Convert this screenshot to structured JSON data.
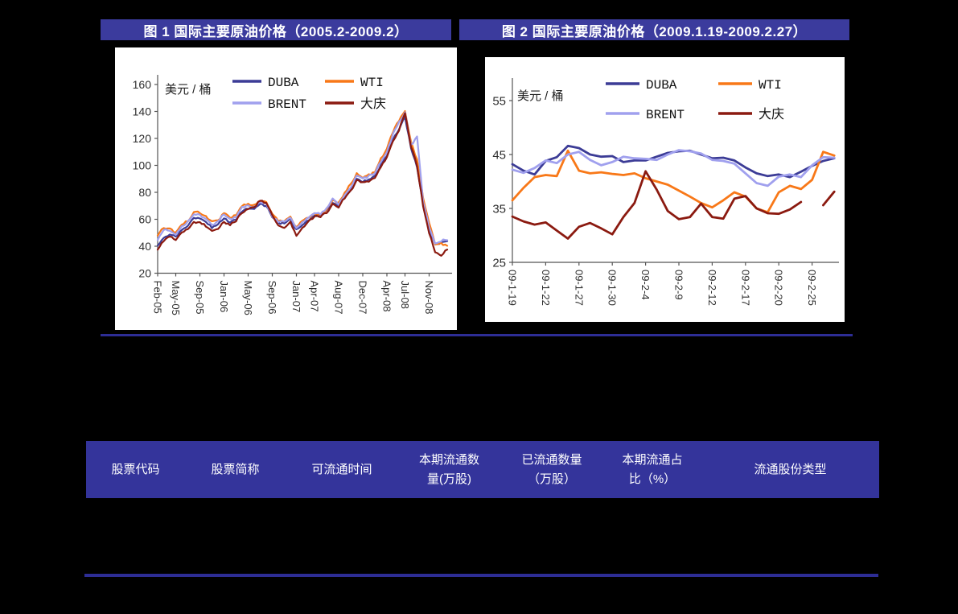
{
  "colors": {
    "page_background": "#000000",
    "figure_title_bar_bg": "#3b3b9d",
    "table_header_bg": "#34349b",
    "divider_line": "#2d2d95",
    "axis_line": "#555555",
    "axis_text": "#2e2e2e",
    "series_duba": "#3c3c96",
    "series_wti": "#f87818",
    "series_brent": "#a0a0ee",
    "series_daqing": "#8b1a10"
  },
  "table": {
    "columns": [
      {
        "label": "股票代码"
      },
      {
        "label": "股票简称"
      },
      {
        "label": "可流通时间"
      },
      {
        "label": "本期流通数\n量(万股)"
      },
      {
        "label": "已流通数量\n（万股）"
      },
      {
        "label": "本期流通占\n比（%）"
      },
      {
        "label": "流通股份类型"
      }
    ]
  },
  "chart_data": [
    {
      "type": "line",
      "title": "图 1 国际主要原油价格（2005.2-2009.2）",
      "unit_label": "美元 / 桶",
      "legend_position": "top-inside",
      "grid": false,
      "ylim": [
        20,
        160
      ],
      "yticks": [
        160,
        140,
        120,
        100,
        80,
        60,
        40,
        20
      ],
      "x_description": "monthly, Feb-2005 to Feb-2009, tick labels rotated 90°",
      "xticks": [
        {
          "label": "Feb-05",
          "index": 0
        },
        {
          "label": "May-05",
          "index": 3
        },
        {
          "label": "Sep-05",
          "index": 7
        },
        {
          "label": "Jan-06",
          "index": 11
        },
        {
          "label": "May-06",
          "index": 15
        },
        {
          "label": "Sep-06",
          "index": 19
        },
        {
          "label": "Jan-07",
          "index": 23
        },
        {
          "label": "Apr-07",
          "index": 26
        },
        {
          "label": "Aug-07",
          "index": 30
        },
        {
          "label": "Dec-07",
          "index": 34
        },
        {
          "label": "Apr-08",
          "index": 38
        },
        {
          "label": "Jul-08",
          "index": 41
        },
        {
          "label": "Nov-08",
          "index": 45
        }
      ],
      "series": [
        {
          "name": "DUBA",
          "color_key": "series_duba",
          "values": [
            41,
            46,
            49,
            47,
            52,
            55,
            61,
            61,
            58,
            54,
            56,
            61,
            58,
            60,
            66,
            68,
            68,
            71,
            70,
            62,
            57,
            57,
            60,
            52,
            56,
            59,
            63,
            63,
            66,
            72,
            70,
            77,
            82,
            90,
            88,
            89,
            92,
            100,
            107,
            119,
            127,
            136,
            113,
            99,
            72,
            53,
            41,
            43,
            44
          ]
        },
        {
          "name": "WTI",
          "color_key": "series_wti",
          "values": [
            48,
            54,
            53,
            50,
            56,
            59,
            65,
            65,
            62,
            58,
            59,
            65,
            61,
            63,
            70,
            71,
            71,
            74,
            73,
            64,
            59,
            59,
            62,
            54,
            59,
            61,
            64,
            63,
            67,
            74,
            72,
            80,
            86,
            94,
            91,
            93,
            95,
            105,
            112,
            125,
            133,
            140,
            117,
            104,
            76,
            57,
            42,
            42,
            40
          ]
        },
        {
          "name": "BRENT",
          "color_key": "series_brent",
          "values": [
            45,
            52,
            52,
            49,
            55,
            58,
            64,
            63,
            60,
            56,
            58,
            64,
            60,
            62,
            69,
            70,
            69,
            73,
            72,
            62,
            58,
            58,
            61,
            53,
            58,
            61,
            65,
            64,
            68,
            75,
            71,
            78,
            84,
            92,
            90,
            92,
            94,
            103,
            110,
            123,
            132,
            139,
            115,
            121,
            73,
            54,
            42,
            44,
            45
          ]
        },
        {
          "name": "大庆",
          "color_key": "series_daqing",
          "values": [
            38,
            44,
            47,
            45,
            50,
            53,
            58,
            58,
            55,
            51,
            53,
            58,
            56,
            59,
            65,
            67,
            69,
            74,
            72,
            63,
            56,
            54,
            58,
            48,
            54,
            58,
            62,
            62,
            65,
            71,
            69,
            76,
            81,
            89,
            87,
            88,
            91,
            99,
            106,
            118,
            126,
            139,
            114,
            100,
            70,
            50,
            36,
            33,
            38
          ]
        }
      ]
    },
    {
      "type": "line",
      "title": "图 2 国际主要原油价格（2009.1.19-2009.2.27）",
      "unit_label": "美元 / 桶",
      "legend_position": "top-inside",
      "grid": false,
      "ylim": [
        25,
        58
      ],
      "yticks": [
        55,
        45,
        35,
        25
      ],
      "x_description": "daily trading days 2009-1-19 to 2009-2-27, tick labels rotated 90°",
      "xticks": [
        {
          "label": "09-1-19",
          "index": 0
        },
        {
          "label": "09-1-22",
          "index": 3
        },
        {
          "label": "09-1-27",
          "index": 6
        },
        {
          "label": "09-1-30",
          "index": 9
        },
        {
          "label": "09-2-4",
          "index": 12
        },
        {
          "label": "09-2-9",
          "index": 15
        },
        {
          "label": "09-2-12",
          "index": 18
        },
        {
          "label": "09-2-17",
          "index": 21
        },
        {
          "label": "09-2-20",
          "index": 24
        },
        {
          "label": "09-2-25",
          "index": 27
        }
      ],
      "series": [
        {
          "name": "DUBA",
          "color_key": "series_duba",
          "values": [
            43.2,
            42.0,
            41.3,
            43.8,
            44.5,
            46.6,
            46.2,
            45.0,
            44.6,
            44.7,
            43.6,
            43.9,
            43.9,
            44.6,
            45.3,
            45.6,
            45.7,
            45.0,
            44.3,
            44.4,
            43.9,
            42.6,
            41.5,
            41.0,
            41.3,
            40.8,
            41.8,
            42.9,
            43.8,
            44.3
          ]
        },
        {
          "name": "WTI",
          "color_key": "series_wti",
          "values": [
            36.5,
            38.8,
            40.8,
            41.2,
            41.0,
            45.7,
            42.0,
            41.5,
            41.7,
            41.4,
            41.2,
            41.5,
            40.6,
            40.0,
            39.4,
            38.3,
            37.2,
            36.0,
            35.2,
            36.5,
            38.0,
            37.2,
            35.0,
            34.3,
            38.0,
            39.2,
            38.6,
            40.3,
            45.5,
            44.8
          ]
        },
        {
          "name": "BRENT",
          "color_key": "series_brent",
          "values": [
            42.2,
            41.6,
            42.5,
            43.9,
            43.4,
            45.0,
            45.5,
            44.0,
            43.0,
            43.6,
            44.6,
            44.3,
            44.2,
            44.0,
            45.0,
            45.8,
            45.6,
            45.2,
            44.0,
            43.8,
            43.3,
            41.5,
            39.7,
            39.2,
            40.9,
            41.3,
            40.8,
            43.0,
            44.5,
            44.4
          ]
        },
        {
          "name": "大庆",
          "color_key": "series_daqing",
          "values": [
            33.5,
            32.6,
            32.0,
            32.4,
            30.9,
            29.4,
            31.6,
            32.3,
            31.3,
            30.2,
            33.4,
            36.0,
            41.9,
            38.5,
            34.5,
            33.0,
            33.4,
            35.9,
            33.4,
            33.1,
            36.8,
            37.3,
            35.0,
            34.1,
            34.0,
            34.8,
            36.2,
            null,
            35.6,
            38.1
          ]
        }
      ]
    }
  ]
}
